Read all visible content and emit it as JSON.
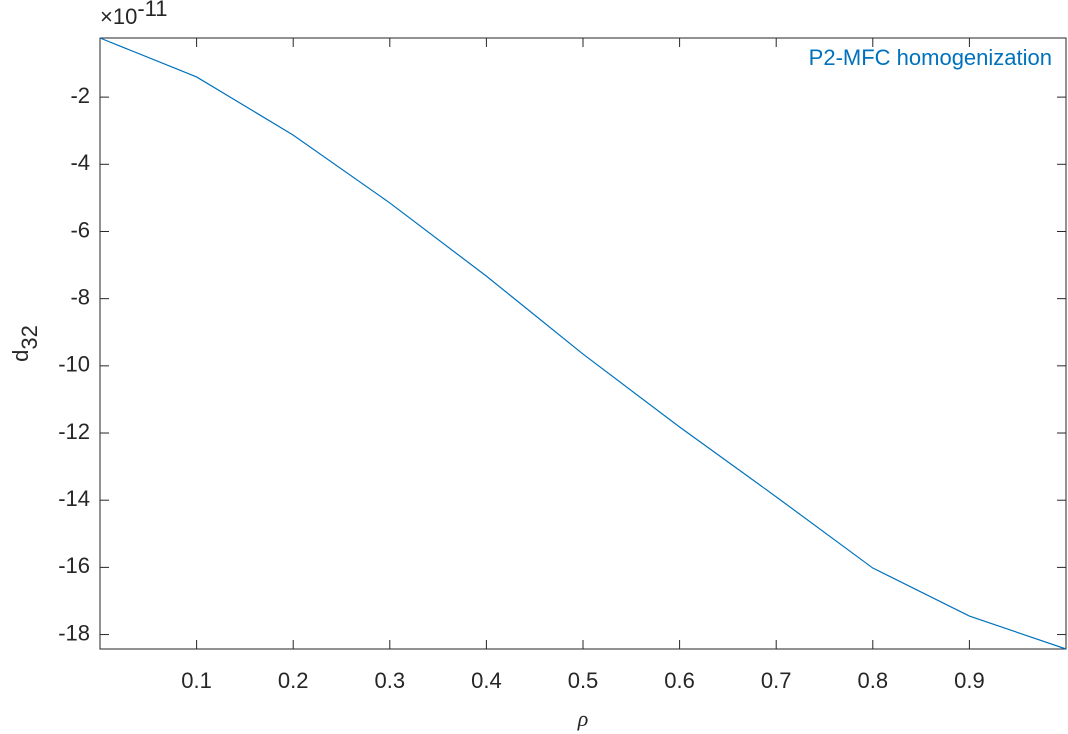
{
  "chart_data": {
    "type": "line",
    "x": [
      0,
      0.1,
      0.2,
      0.3,
      0.4,
      0.5,
      0.6,
      0.7,
      0.8,
      0.9,
      1.0
    ],
    "series": [
      {
        "name": "P2-MFC homogenization",
        "color": "#0072bd",
        "values": [
          -0.24,
          -1.4,
          -3.13,
          -5.15,
          -7.33,
          -9.65,
          -11.82,
          -13.9,
          -16.02,
          -17.45,
          -18.43
        ]
      }
    ],
    "xlabel": "ρ",
    "ylabel": {
      "text": "d",
      "subscript": "32"
    },
    "y_exponent": {
      "base": "×10",
      "power": "-11"
    },
    "xlim": [
      0,
      1
    ],
    "xticks": [
      0.1,
      0.2,
      0.3,
      0.4,
      0.5,
      0.6,
      0.7,
      0.8,
      0.9
    ],
    "ylim": [
      -18.43,
      -0.24
    ],
    "yticks": [
      -18,
      -16,
      -14,
      -12,
      -10,
      -8,
      -6,
      -4,
      -2
    ],
    "legend": "top-right",
    "grid": false
  }
}
